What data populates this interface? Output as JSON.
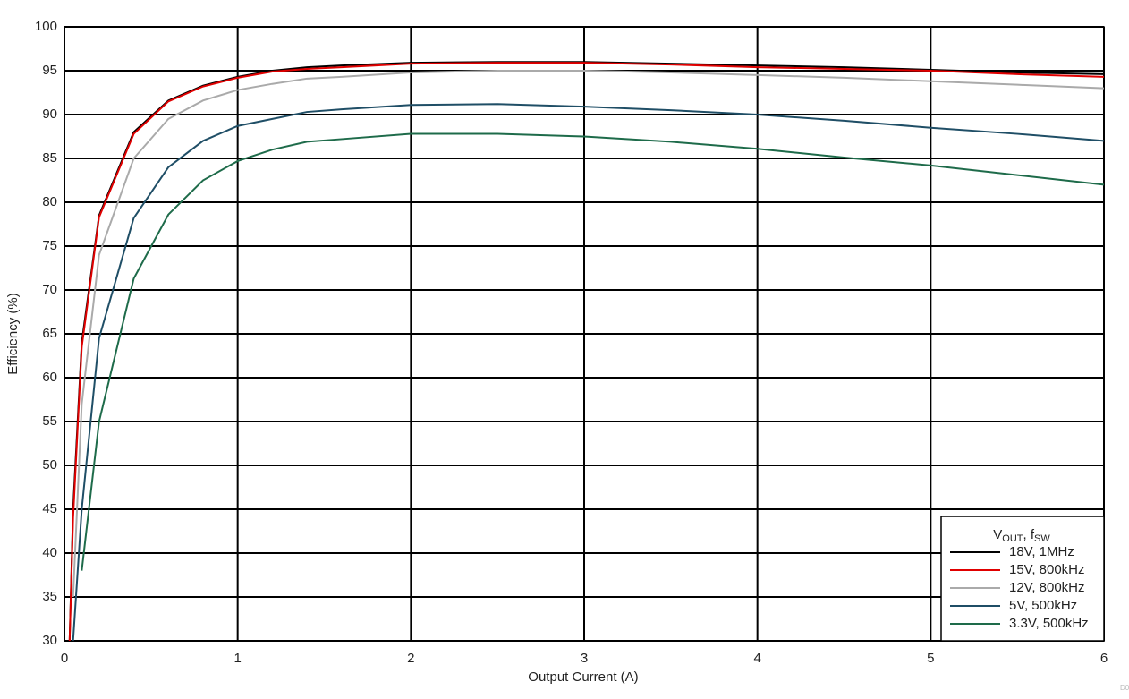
{
  "chart_data": {
    "type": "line",
    "xlabel": "Output Current (A)",
    "ylabel": "Efficiency (%)",
    "x": [
      0.03,
      0.05,
      0.1,
      0.2,
      0.4,
      0.6,
      0.8,
      1.0,
      1.2,
      1.4,
      1.6,
      2.0,
      2.5,
      3.0,
      3.5,
      4.0,
      4.5,
      5.0,
      5.5,
      6.0
    ],
    "series": [
      {
        "name": "18V, 1MHz",
        "color": "#000000",
        "values": [
          30,
          45,
          64,
          78.5,
          88,
          91.6,
          93.3,
          94.3,
          95,
          95.4,
          95.6,
          95.9,
          96,
          96,
          95.8,
          95.6,
          95.4,
          95.1,
          94.8,
          94.6
        ]
      },
      {
        "name": "15V, 800kHz",
        "color": "#e00000",
        "values": [
          30,
          44,
          63.5,
          78.3,
          87.8,
          91.5,
          93.2,
          94.2,
          94.9,
          95.2,
          95.4,
          95.8,
          95.9,
          95.9,
          95.7,
          95.4,
          95.2,
          95,
          94.6,
          94.3
        ]
      },
      {
        "name": "12V, 800kHz",
        "color": "#aaaaaa",
        "values": [
          null,
          35,
          57,
          74,
          85,
          89.5,
          91.6,
          92.8,
          93.5,
          94.1,
          94.3,
          94.8,
          95,
          95,
          94.8,
          94.5,
          94.2,
          93.8,
          93.4,
          93
        ]
      },
      {
        "name": "5V, 500kHz",
        "color": "#1f4e66",
        "values": [
          null,
          30,
          45,
          64.5,
          78.2,
          84,
          87,
          88.7,
          89.5,
          90.3,
          90.6,
          91.1,
          91.2,
          90.9,
          90.5,
          90,
          89.3,
          88.5,
          87.8,
          87
        ]
      },
      {
        "name": "3.3V, 500kHz",
        "color": "#1e6b4a",
        "values": [
          null,
          null,
          38,
          55,
          71.3,
          78.6,
          82.5,
          84.7,
          86,
          86.9,
          87.2,
          87.8,
          87.8,
          87.5,
          86.9,
          86.1,
          85.1,
          84.2,
          83.1,
          82
        ]
      }
    ],
    "legend_title": {
      "v": "V",
      "v_sub": "OUT",
      "sep": ", f",
      "f_sub": "SW"
    },
    "legend": "lower right",
    "figure_id": "D0",
    "xlim": [
      0,
      6
    ],
    "xticks": [
      0,
      1,
      2,
      3,
      4,
      5,
      6
    ],
    "ylim": [
      30,
      100
    ],
    "yticks": [
      30,
      35,
      40,
      45,
      50,
      55,
      60,
      65,
      70,
      75,
      80,
      85,
      90,
      95,
      100
    ],
    "grid": true
  }
}
